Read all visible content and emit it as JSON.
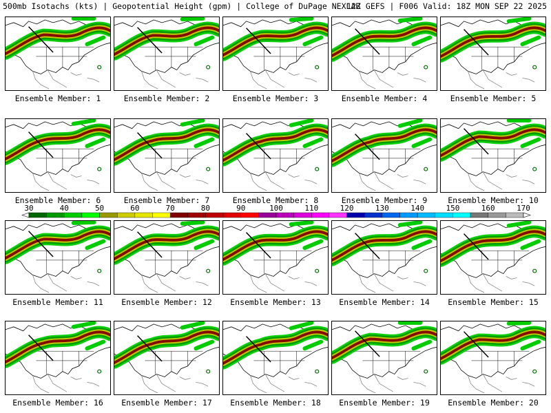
{
  "header": {
    "left_title": "500mb Isotachs (kts) | Geopotential Height (gpm) | College of DuPage NEXLAB",
    "right_title": "12Z GEFS | F006 Valid: 18Z MON SEP 22 2025"
  },
  "legend": {
    "labels": [
      "30",
      "40",
      "50",
      "60",
      "70",
      "80",
      "90",
      "100",
      "110",
      "120",
      "130",
      "140",
      "150",
      "160",
      "170"
    ],
    "colors": [
      "#006600",
      "#009900",
      "#00cc00",
      "#00ff00",
      "#999900",
      "#cccc00",
      "#e6e600",
      "#ffff00",
      "#800000",
      "#a00000",
      "#c00000",
      "#e00000",
      "#ff0000",
      "#990099",
      "#bb00bb",
      "#dd00dd",
      "#ff00ff",
      "#ff33ff",
      "#0000aa",
      "#0033cc",
      "#0066ee",
      "#0099ff",
      "#00bbff",
      "#00ddff",
      "#00ffff",
      "#777777",
      "#999999",
      "#bbbbbb"
    ]
  },
  "panels": [
    {
      "label": "Ensemble Member: 1"
    },
    {
      "label": "Ensemble Member: 2"
    },
    {
      "label": "Ensemble Member: 3"
    },
    {
      "label": "Ensemble Member: 4"
    },
    {
      "label": "Ensemble Member: 5"
    },
    {
      "label": "Ensemble Member: 6"
    },
    {
      "label": "Ensemble Member: 7"
    },
    {
      "label": "Ensemble Member: 8"
    },
    {
      "label": "Ensemble Member: 9"
    },
    {
      "label": "Ensemble Member: 10"
    },
    {
      "label": "Ensemble Member: 11"
    },
    {
      "label": "Ensemble Member: 12"
    },
    {
      "label": "Ensemble Member: 13"
    },
    {
      "label": "Ensemble Member: 14"
    },
    {
      "label": "Ensemble Member: 15"
    },
    {
      "label": "Ensemble Member: 16"
    },
    {
      "label": "Ensemble Member: 17"
    },
    {
      "label": "Ensemble Member: 18"
    },
    {
      "label": "Ensemble Member: 19"
    },
    {
      "label": "Ensemble Member: 20"
    }
  ]
}
